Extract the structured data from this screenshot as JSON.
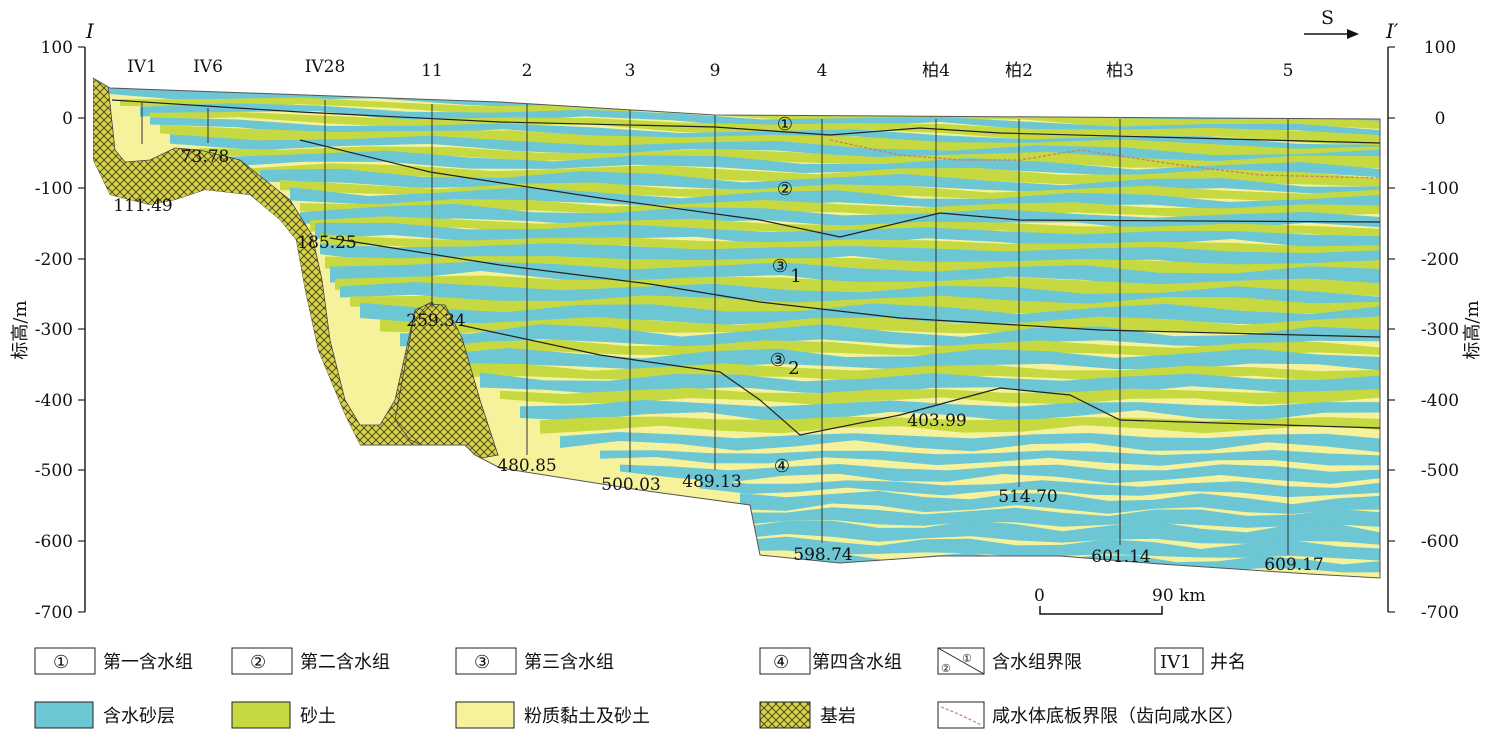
{
  "section": {
    "start_label": "I",
    "end_label": "I′",
    "direction": "S"
  },
  "y_axis": {
    "label": "标高/m",
    "ticks": [
      "100",
      "0",
      "-100",
      "-200",
      "-300",
      "-400",
      "-500",
      "-600",
      "-700"
    ]
  },
  "wells": [
    "IV1",
    "IV6",
    "IV28",
    "11",
    "2",
    "3",
    "9",
    "4",
    "柏4",
    "柏2",
    "柏3",
    "5"
  ],
  "depths": [
    "73.78",
    "111.49",
    "185.25",
    "259.34",
    "480.85",
    "500.03",
    "489.13",
    "403.99",
    "514.70",
    "598.74",
    "601.14",
    "609.17"
  ],
  "aquifer_groups": [
    "①",
    "②",
    "③",
    "1",
    "③",
    "2",
    "④"
  ],
  "scale_bar": {
    "start": "0",
    "end": "90 km"
  },
  "legend": [
    {
      "symbol": "①",
      "text": "第一含水组"
    },
    {
      "symbol": "②",
      "text": "第二含水组"
    },
    {
      "symbol": "③",
      "text": "第三含水组"
    },
    {
      "symbol": "④",
      "text": "第四含水组"
    },
    {
      "text": "含水组界限"
    },
    {
      "symbol": "IV1",
      "text": "井名"
    },
    {
      "text": "含水砂层"
    },
    {
      "text": "砂土"
    },
    {
      "text": "粉质黏土及砂土"
    },
    {
      "text": "基岩"
    },
    {
      "text": "咸水体底板界限（齿向咸水区）"
    }
  ],
  "colors": {
    "aquifer_sand": "#6cc6d3",
    "sand_soil": "#c6d940",
    "silty_clay": "#f6f29c",
    "bedrock": "#d6d24a"
  }
}
